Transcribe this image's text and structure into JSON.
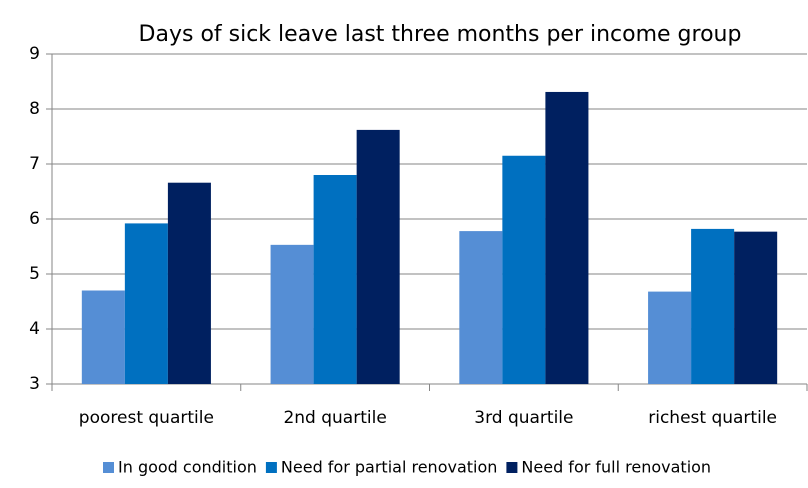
{
  "chart_data": {
    "type": "bar",
    "title": "Days of sick leave last three months per income group",
    "categories": [
      "poorest quartile",
      "2nd quartile",
      "3rd quartile",
      "richest quartile"
    ],
    "series": [
      {
        "name": "In good condition",
        "color": "#558ed5",
        "values": [
          4.7,
          5.53,
          5.78,
          4.68
        ]
      },
      {
        "name": "Need for partial renovation",
        "color": "#0070c0",
        "values": [
          5.92,
          6.8,
          7.15,
          5.82
        ]
      },
      {
        "name": "Need for full renovation",
        "color": "#002060",
        "values": [
          6.66,
          7.62,
          8.31,
          5.77
        ]
      }
    ],
    "ylim": [
      3,
      9
    ],
    "yticks": [
      3,
      4,
      5,
      6,
      7,
      8,
      9
    ],
    "grid": true,
    "legend": "bottom"
  }
}
